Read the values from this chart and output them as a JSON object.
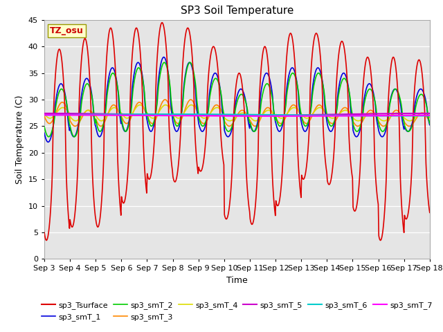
{
  "title": "SP3 Soil Temperature",
  "xlabel": "Time",
  "ylabel": "Soil Temperature (C)",
  "ylim": [
    0,
    45
  ],
  "x_tick_labels": [
    "Sep 3",
    "Sep 4",
    "Sep 5",
    "Sep 6",
    "Sep 7",
    "Sep 8",
    "Sep 9",
    "Sep 10",
    "Sep 11",
    "Sep 12",
    "Sep 13",
    "Sep 14",
    "Sep 15",
    "Sep 16",
    "Sep 17",
    "Sep 18"
  ],
  "background_color": "#ffffff",
  "plot_bg_color": "#e5e5e5",
  "grid_color": "#ffffff",
  "tz_label": "TZ_osu",
  "tz_box_facecolor": "#ffffcc",
  "tz_box_edgecolor": "#999900",
  "tz_text_color": "#cc0000",
  "series_colors": {
    "sp3_Tsurface": "#dd0000",
    "sp3_smT_1": "#0000dd",
    "sp3_smT_2": "#00cc00",
    "sp3_smT_3": "#ff8800",
    "sp3_smT_4": "#dddd00",
    "sp3_smT_5": "#cc00cc",
    "sp3_smT_6": "#00cccc",
    "sp3_smT_7": "#ff00ff"
  },
  "title_fontsize": 11,
  "axis_label_fontsize": 9,
  "tick_fontsize": 8,
  "legend_fontsize": 8
}
